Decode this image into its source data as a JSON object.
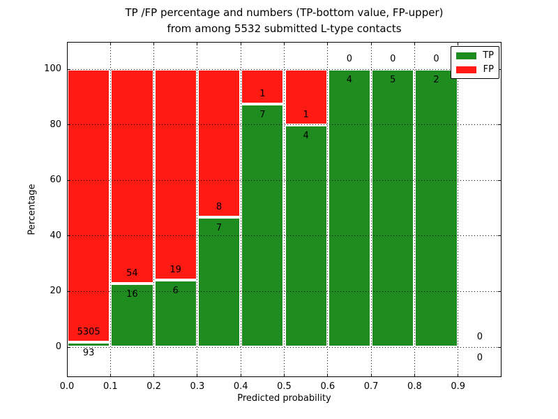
{
  "title": {
    "line1": "TP /FP percentage and numbers (TP-bottom value, FP-upper)",
    "line2": "from among 5532 submitted L-type contacts"
  },
  "axes": {
    "xlabel": "Predicted probability",
    "ylabel": "Percentage",
    "xtick_labels": [
      "0.0",
      "0.1",
      "0.2",
      "0.3",
      "0.4",
      "0.5",
      "0.6",
      "0.7",
      "0.8",
      "0.9"
    ],
    "ytick_labels": [
      "0",
      "20",
      "40",
      "60",
      "80",
      "100"
    ]
  },
  "legend": {
    "items": [
      {
        "label": "TP",
        "color_key": "tp"
      },
      {
        "label": "FP",
        "color_key": "fp"
      }
    ]
  },
  "chart_data": {
    "type": "bar",
    "subtype": "stacked-percentage-histogram",
    "title": "TP /FP percentage and numbers (TP-bottom value, FP-upper) from among 5532 submitted L-type contacts",
    "xlabel": "Predicted probability",
    "ylabel": "Percentage",
    "xlim": [
      0.0,
      1.0
    ],
    "ylim": [
      -10.8,
      110.6
    ],
    "grid": true,
    "legend_position": "upper right",
    "bin_width": 0.1,
    "colors": {
      "tp": "#1e8c1e",
      "fp": "#ff1a14"
    },
    "bins": [
      {
        "x0": 0.0,
        "tp": 93,
        "fp": 5305
      },
      {
        "x0": 0.1,
        "tp": 16,
        "fp": 54
      },
      {
        "x0": 0.2,
        "tp": 6,
        "fp": 19
      },
      {
        "x0": 0.3,
        "tp": 7,
        "fp": 8
      },
      {
        "x0": 0.4,
        "tp": 7,
        "fp": 1
      },
      {
        "x0": 0.5,
        "tp": 4,
        "fp": 1
      },
      {
        "x0": 0.6,
        "tp": 4,
        "fp": 0
      },
      {
        "x0": 0.7,
        "tp": 5,
        "fp": 0
      },
      {
        "x0": 0.8,
        "tp": 2,
        "fp": 0
      },
      {
        "x0": 0.9,
        "tp": 0,
        "fp": 0
      }
    ]
  }
}
